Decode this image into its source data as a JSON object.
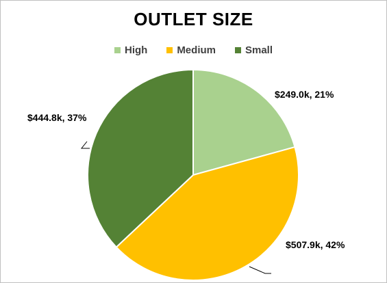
{
  "chart_data": {
    "type": "pie",
    "title": "OUTLET SIZE",
    "categories": [
      "High",
      "Medium",
      "Small"
    ],
    "values": [
      249.0,
      507.9,
      444.8
    ],
    "value_unit": "k$",
    "data_labels": [
      "$249.0k, 21%",
      "$507.9k, 42%",
      "$444.8k, 37%"
    ],
    "percentages": [
      21,
      42,
      37
    ],
    "colors": [
      "#a9d18e",
      "#ffc000",
      "#548235"
    ],
    "legend_position": "top"
  }
}
